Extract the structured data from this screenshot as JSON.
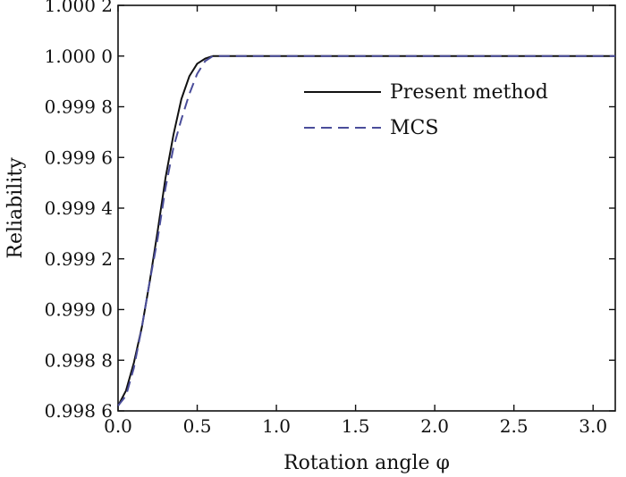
{
  "chart_data": {
    "type": "line",
    "xlabel": "Rotation angle φ",
    "ylabel": "Reliability",
    "xlim": [
      0,
      3.14
    ],
    "ylim": [
      0.9986,
      1.0002
    ],
    "x_ticks": [
      0.0,
      0.5,
      1.0,
      1.5,
      2.0,
      2.5,
      3.0
    ],
    "x_tick_labels": [
      "0.0",
      "0.5",
      "1.0",
      "1.5",
      "2.0",
      "2.5",
      "3.0"
    ],
    "y_ticks": [
      0.9986,
      0.9988,
      0.999,
      0.9992,
      0.9994,
      0.9996,
      0.9998,
      1.0,
      1.0002
    ],
    "y_tick_labels": [
      "0.998 6",
      "0.998 8",
      "0.999 0",
      "0.999 2",
      "0.999 4",
      "0.999 6",
      "0.999 8",
      "1.000 0",
      "1.000 2"
    ],
    "grid": false,
    "legend_position": "top-right",
    "series": [
      {
        "name": "Present method",
        "style": "solid",
        "color": "#111111",
        "x": [
          0.0,
          0.05,
          0.1,
          0.15,
          0.2,
          0.25,
          0.3,
          0.35,
          0.4,
          0.45,
          0.5,
          0.55,
          0.6,
          0.7,
          1.0,
          1.5,
          2.0,
          2.5,
          3.0,
          3.14
        ],
        "y": [
          0.99862,
          0.99868,
          0.99879,
          0.99893,
          0.99911,
          0.99931,
          0.99952,
          0.99969,
          0.99983,
          0.99992,
          0.99997,
          0.99999,
          1.0,
          1.0,
          1.0,
          1.0,
          1.0,
          1.0,
          1.0,
          1.0
        ]
      },
      {
        "name": "MCS",
        "style": "dashed",
        "color": "#4a4d9a",
        "x": [
          0.0,
          0.05,
          0.1,
          0.15,
          0.2,
          0.25,
          0.3,
          0.35,
          0.4,
          0.45,
          0.5,
          0.55,
          0.6,
          0.7,
          1.0,
          1.5,
          2.0,
          2.5,
          3.0,
          3.14
        ],
        "y": [
          0.99862,
          0.99866,
          0.99877,
          0.99893,
          0.99911,
          0.99928,
          0.99948,
          0.99964,
          0.99975,
          0.99985,
          0.99993,
          0.99998,
          1.0,
          1.0,
          1.0,
          1.0,
          1.0,
          1.0,
          1.0,
          1.0
        ]
      }
    ]
  }
}
